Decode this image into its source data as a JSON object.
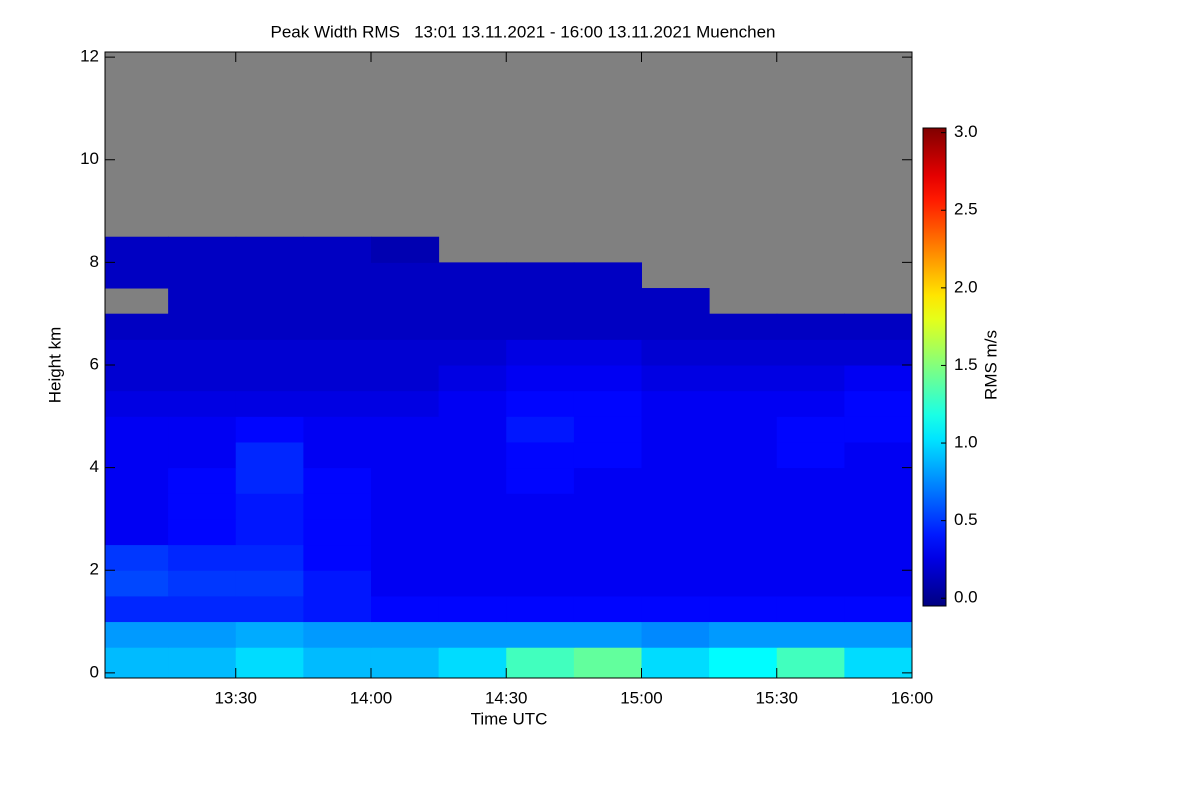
{
  "chart_data": {
    "type": "heatmap",
    "title": "Peak Width RMS   13:01 13.11.2021 - 16:00 13.11.2021 Muenchen",
    "xlabel": "Time UTC",
    "ylabel": "Height km",
    "colorbar_label": "RMS m/s",
    "xlim": [
      781,
      960
    ],
    "xticks": [
      {
        "value": 810,
        "label": "13:30"
      },
      {
        "value": 840,
        "label": "14:00"
      },
      {
        "value": 870,
        "label": "14:30"
      },
      {
        "value": 900,
        "label": "15:00"
      },
      {
        "value": 930,
        "label": "15:30"
      },
      {
        "value": 960,
        "label": "16:00"
      }
    ],
    "ylim": [
      -0.1,
      12.1
    ],
    "yticks": [
      0,
      2,
      4,
      6,
      8,
      10,
      12
    ],
    "clim": [
      -0.05,
      3.03
    ],
    "cticks": [
      {
        "value": 0,
        "label": "0.0"
      },
      {
        "value": 0.5,
        "label": "0.5"
      },
      {
        "value": 1,
        "label": "1.0"
      },
      {
        "value": 1.5,
        "label": "1.5"
      },
      {
        "value": 2,
        "label": "2.0"
      },
      {
        "value": 2.5,
        "label": "2.5"
      },
      {
        "value": 3,
        "label": "3.0"
      }
    ],
    "colormap": "jet",
    "nodata_color": "#808080",
    "x_edges": [
      781,
      795,
      810,
      825,
      840,
      855,
      870,
      885,
      900,
      915,
      930,
      945,
      960
    ],
    "y_edges": [
      -0.1,
      0.5,
      1,
      1.5,
      2,
      2.5,
      3,
      3.5,
      4,
      4.5,
      5,
      5.5,
      6,
      6.5,
      7,
      7.5,
      8,
      8.5
    ],
    "z": [
      [
        0.9,
        0.9,
        1.0,
        0.9,
        0.9,
        1.0,
        1.3,
        1.4,
        1.0,
        1.1,
        1.3,
        1.0
      ],
      [
        0.8,
        0.8,
        0.85,
        0.8,
        0.8,
        0.8,
        0.8,
        0.8,
        0.75,
        0.8,
        0.8,
        0.8
      ],
      [
        0.45,
        0.45,
        0.45,
        0.4,
        0.35,
        0.35,
        0.35,
        0.35,
        0.35,
        0.35,
        0.35,
        0.35
      ],
      [
        0.55,
        0.5,
        0.5,
        0.4,
        0.3,
        0.3,
        0.3,
        0.3,
        0.3,
        0.3,
        0.3,
        0.3
      ],
      [
        0.5,
        0.45,
        0.45,
        0.35,
        0.3,
        0.3,
        0.3,
        0.3,
        0.3,
        0.3,
        0.3,
        0.3
      ],
      [
        0.3,
        0.35,
        0.4,
        0.35,
        0.3,
        0.3,
        0.3,
        0.3,
        0.3,
        0.3,
        0.3,
        0.3
      ],
      [
        0.3,
        0.35,
        0.4,
        0.35,
        0.3,
        0.3,
        0.3,
        0.3,
        0.3,
        0.3,
        0.3,
        0.3
      ],
      [
        0.3,
        0.35,
        0.45,
        0.35,
        0.3,
        0.3,
        0.35,
        0.3,
        0.3,
        0.3,
        0.3,
        0.3
      ],
      [
        0.3,
        0.3,
        0.45,
        0.3,
        0.3,
        0.3,
        0.35,
        0.35,
        0.3,
        0.3,
        0.35,
        0.3
      ],
      [
        0.3,
        0.3,
        0.35,
        0.3,
        0.3,
        0.3,
        0.4,
        0.35,
        0.3,
        0.3,
        0.35,
        0.35
      ],
      [
        0.25,
        0.25,
        0.25,
        0.25,
        0.25,
        0.3,
        0.35,
        0.35,
        0.3,
        0.3,
        0.3,
        0.35
      ],
      [
        0.2,
        0.2,
        0.2,
        0.2,
        0.2,
        0.25,
        0.3,
        0.3,
        0.25,
        0.25,
        0.25,
        0.3
      ],
      [
        0.2,
        0.2,
        0.2,
        0.2,
        0.2,
        0.2,
        0.25,
        0.25,
        0.2,
        0.2,
        0.2,
        0.2
      ],
      [
        0.15,
        0.15,
        0.15,
        0.15,
        0.15,
        0.15,
        0.15,
        0.15,
        0.15,
        0.15,
        0.15,
        0.15
      ],
      [
        null,
        0.15,
        0.15,
        0.15,
        0.15,
        0.15,
        0.15,
        0.15,
        0.15,
        null,
        null,
        null
      ],
      [
        0.15,
        0.15,
        0.15,
        0.15,
        0.15,
        0.15,
        0.15,
        0.15,
        null,
        null,
        null,
        null
      ],
      [
        0.15,
        0.15,
        0.15,
        0.15,
        0.1,
        null,
        null,
        null,
        null,
        null,
        null,
        null
      ]
    ]
  }
}
